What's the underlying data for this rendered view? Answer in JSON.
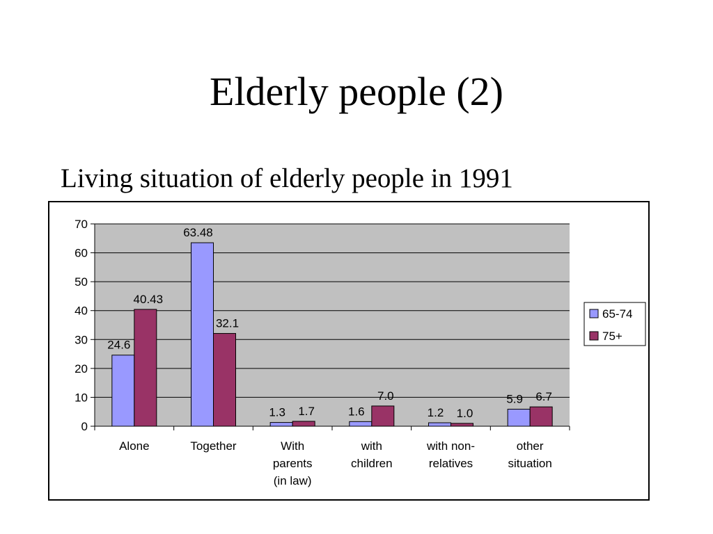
{
  "slide": {
    "title": "Elderly people (2)",
    "subtitle": "Living situation of elderly people in 1991"
  },
  "chart_data": {
    "type": "bar",
    "categories": [
      [
        "Alone"
      ],
      [
        "Together"
      ],
      [
        "With",
        "parents",
        "(in law)"
      ],
      [
        "with",
        "children"
      ],
      [
        "with non-",
        "relatives"
      ],
      [
        "other",
        "situation"
      ]
    ],
    "series": [
      {
        "name": "65-74",
        "color": "#9999ff",
        "values": [
          24.6,
          63.48,
          1.3,
          1.6,
          1.2,
          5.9
        ],
        "labels": [
          "24.6",
          "63.48",
          "1.3",
          "1.6",
          "1.2",
          "5.9"
        ]
      },
      {
        "name": "75+",
        "color": "#993366",
        "values": [
          40.43,
          32.1,
          1.7,
          7.0,
          1.0,
          6.7
        ],
        "labels": [
          "40.43",
          "32.1",
          "1.7",
          "7.0",
          "1.0",
          "6.7"
        ]
      }
    ],
    "ylim": [
      0,
      70
    ],
    "yticks": [
      0,
      10,
      20,
      30,
      40,
      50,
      60,
      70
    ],
    "plot_background": "#c0c0c0",
    "grid": true,
    "legend_position": "right"
  }
}
